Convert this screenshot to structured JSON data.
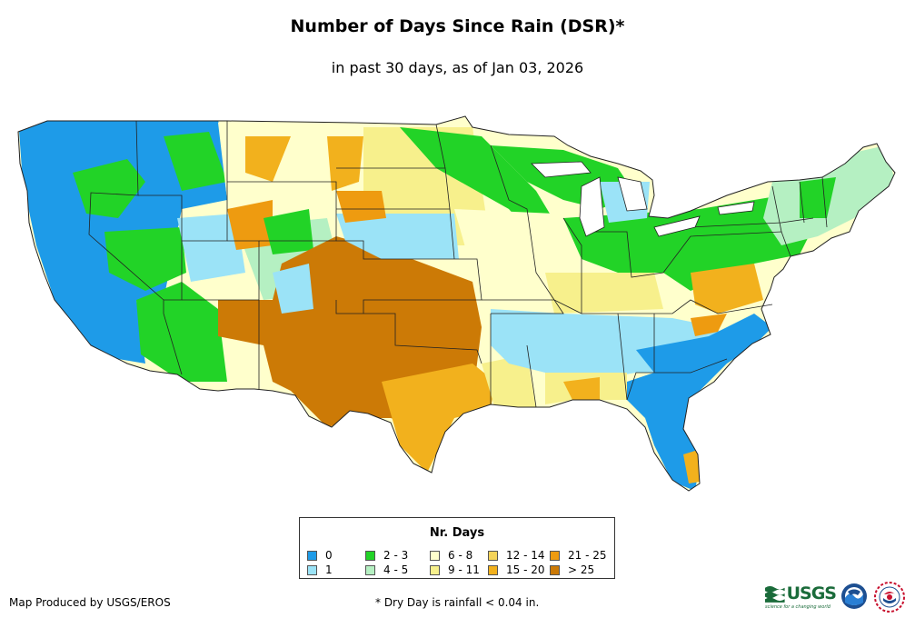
{
  "title": "Number of Days Since Rain (DSR)*",
  "subtitle": "in past 30 days, as of Jan 03, 2026",
  "legend": {
    "title": "Nr. Days",
    "items": [
      {
        "label": "0",
        "color": "#1e9be8"
      },
      {
        "label": "1",
        "color": "#9be3f7"
      },
      {
        "label": "2 - 3",
        "color": "#22d327"
      },
      {
        "label": "4 - 5",
        "color": "#b5f0c2"
      },
      {
        "label": "6 - 8",
        "color": "#ffffcc"
      },
      {
        "label": "9 - 11",
        "color": "#f7f08c"
      },
      {
        "label": "12 - 14",
        "color": "#f5d45a"
      },
      {
        "label": "15 - 20",
        "color": "#f2b11d"
      },
      {
        "label": "21 - 25",
        "color": "#ee9b10"
      },
      {
        "label": "> 25",
        "color": "#cc7a06"
      }
    ]
  },
  "credit": "Map Produced by USGS/EROS",
  "footnote": "* Dry Day is rainfall < 0.04 in.",
  "logos": {
    "usgs": "USGS",
    "usgs_tagline": "science for a changing world",
    "noaa": "NOAA",
    "nws": "NWS"
  }
}
